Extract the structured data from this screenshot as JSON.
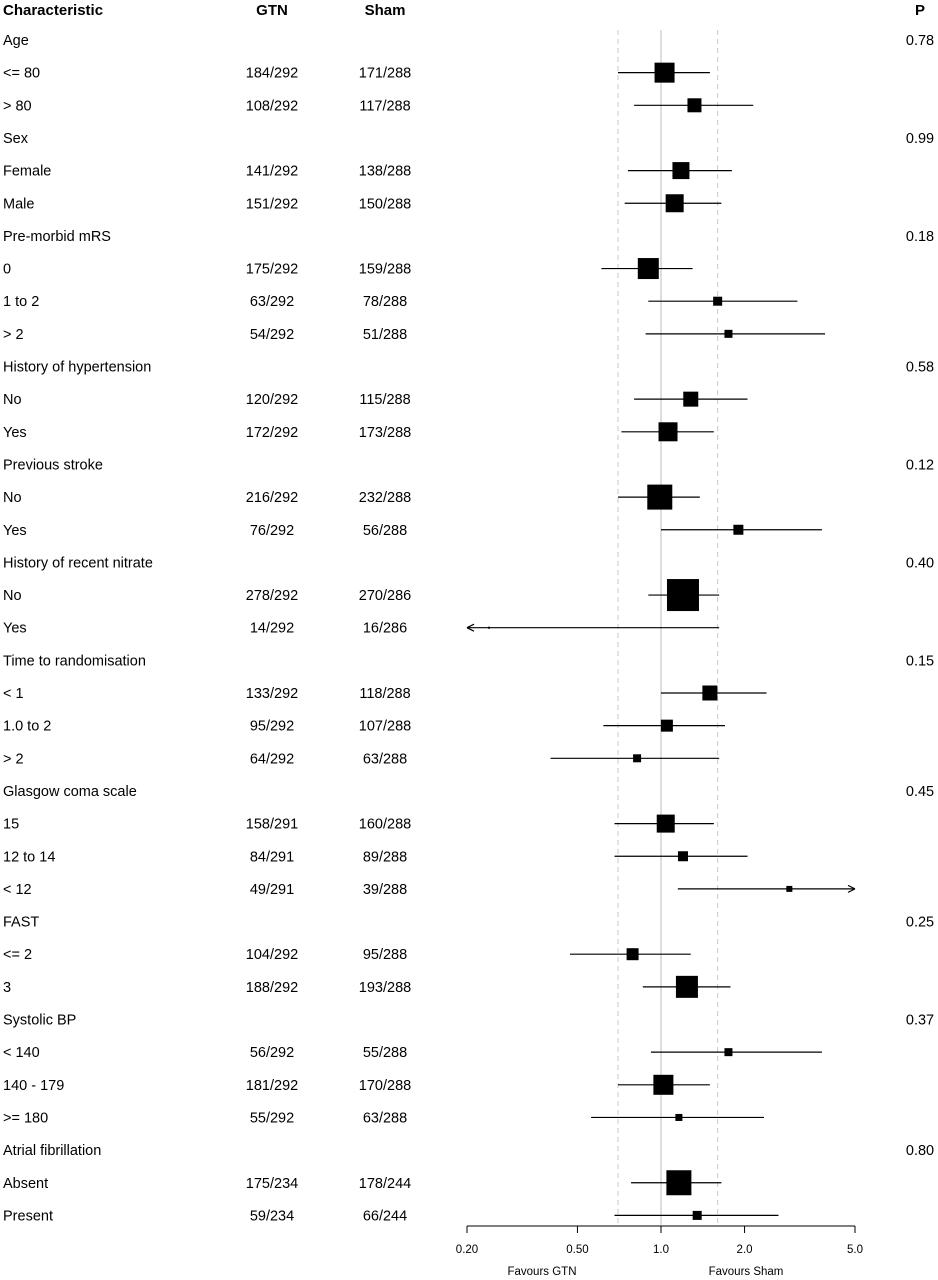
{
  "chart_data": {
    "type": "forest",
    "headers": {
      "characteristic": "Characteristic",
      "gtn": "GTN",
      "sham": "Sham",
      "p": "P"
    },
    "x_axis": {
      "scale": "log",
      "range": [
        0.2,
        5.0
      ],
      "ticks": [
        0.2,
        0.5,
        1.0,
        2.0,
        5.0
      ],
      "tick_labels": [
        "0.20",
        "0.50",
        "1.0",
        "2.0",
        "5.0"
      ],
      "reference_line": 1.0,
      "dashed_lines": [
        0.7,
        1.6
      ],
      "favours_left": "Favours GTN",
      "favours_right": "Favours Sham"
    },
    "rows": [
      {
        "label": "Age",
        "group": true,
        "p": "0.78"
      },
      {
        "label": "<= 80",
        "gtn": "184/292",
        "sham": "171/288",
        "est": 1.03,
        "lo": 0.7,
        "hi": 1.5,
        "box": 20
      },
      {
        "label": "> 80",
        "gtn": "108/292",
        "sham": "117/288",
        "est": 1.32,
        "lo": 0.8,
        "hi": 2.15,
        "box": 14
      },
      {
        "label": "Sex",
        "group": true,
        "p": "0.99"
      },
      {
        "label": "Female",
        "gtn": "141/292",
        "sham": "138/288",
        "est": 1.18,
        "lo": 0.76,
        "hi": 1.8,
        "box": 17
      },
      {
        "label": "Male",
        "gtn": "151/292",
        "sham": "150/288",
        "est": 1.12,
        "lo": 0.74,
        "hi": 1.65,
        "box": 18
      },
      {
        "label": "Pre-morbid mRS",
        "group": true,
        "p": "0.18"
      },
      {
        "label": "0",
        "gtn": "175/292",
        "sham": "159/288",
        "est": 0.9,
        "lo": 0.61,
        "hi": 1.3,
        "box": 21
      },
      {
        "label": "1 to 2",
        "gtn": "63/292",
        "sham": "78/288",
        "est": 1.6,
        "lo": 0.9,
        "hi": 3.1,
        "box": 9
      },
      {
        "label": "> 2",
        "gtn": "54/292",
        "sham": "51/288",
        "est": 1.75,
        "lo": 0.88,
        "hi": 3.9,
        "box": 8
      },
      {
        "label": "History of hypertension",
        "group": true,
        "p": "0.58"
      },
      {
        "label": "No",
        "gtn": "120/292",
        "sham": "115/288",
        "est": 1.28,
        "lo": 0.8,
        "hi": 2.05,
        "box": 15
      },
      {
        "label": "Yes",
        "gtn": "172/292",
        "sham": "173/288",
        "est": 1.06,
        "lo": 0.72,
        "hi": 1.55,
        "box": 19
      },
      {
        "label": "Previous stroke",
        "group": true,
        "p": "0.12"
      },
      {
        "label": "No",
        "gtn": "216/292",
        "sham": "232/288",
        "est": 0.99,
        "lo": 0.7,
        "hi": 1.38,
        "box": 25
      },
      {
        "label": "Yes",
        "gtn": "76/292",
        "sham": "56/288",
        "est": 1.9,
        "lo": 1.0,
        "hi": 3.8,
        "box": 10
      },
      {
        "label": "History of recent nitrate",
        "group": true,
        "p": "0.40"
      },
      {
        "label": "No",
        "gtn": "278/292",
        "sham": "270/286",
        "est": 1.2,
        "lo": 0.9,
        "hi": 1.62,
        "box": 32
      },
      {
        "label": "Yes",
        "gtn": "14/292",
        "sham": "16/286",
        "est": 0.24,
        "lo": 0.2,
        "hi": 1.62,
        "box": 2,
        "arrow_left": true
      },
      {
        "label": "Time to randomisation",
        "group": true,
        "p": "0.15"
      },
      {
        "label": "< 1",
        "gtn": "133/292",
        "sham": "118/288",
        "est": 1.5,
        "lo": 1.0,
        "hi": 2.4,
        "box": 15
      },
      {
        "label": "1.0 to 2",
        "gtn": "95/292",
        "sham": "107/288",
        "est": 1.05,
        "lo": 0.62,
        "hi": 1.7,
        "box": 12
      },
      {
        "label": "> 2",
        "gtn": "64/292",
        "sham": "63/288",
        "est": 0.82,
        "lo": 0.4,
        "hi": 1.62,
        "box": 8
      },
      {
        "label": "Glasgow coma scale",
        "group": true,
        "p": "0.45"
      },
      {
        "label": "15",
        "gtn": "158/291",
        "sham": "160/288",
        "est": 1.04,
        "lo": 0.68,
        "hi": 1.55,
        "box": 18
      },
      {
        "label": "12 to 14",
        "gtn": "84/291",
        "sham": "89/288",
        "est": 1.2,
        "lo": 0.68,
        "hi": 2.05,
        "box": 10
      },
      {
        "label": "< 12",
        "gtn": "49/291",
        "sham": "39/288",
        "est": 2.9,
        "lo": 1.15,
        "hi": 5.0,
        "box": 6,
        "arrow_right": true
      },
      {
        "label": "FAST",
        "group": true,
        "p": "0.25"
      },
      {
        "label": "<= 2",
        "gtn": "104/292",
        "sham": "95/288",
        "est": 0.79,
        "lo": 0.47,
        "hi": 1.28,
        "box": 12
      },
      {
        "label": "3",
        "gtn": "188/292",
        "sham": "193/288",
        "est": 1.24,
        "lo": 0.86,
        "hi": 1.78,
        "box": 22
      },
      {
        "label": "Systolic BP",
        "group": true,
        "p": "0.37"
      },
      {
        "label": "< 140",
        "gtn": "56/292",
        "sham": "55/288",
        "est": 1.75,
        "lo": 0.92,
        "hi": 3.8,
        "box": 8
      },
      {
        "label": "140 - 179",
        "gtn": "181/292",
        "sham": "170/288",
        "est": 1.02,
        "lo": 0.7,
        "hi": 1.5,
        "box": 20
      },
      {
        "label": ">= 180",
        "gtn": "55/292",
        "sham": "63/288",
        "est": 1.16,
        "lo": 0.56,
        "hi": 2.35,
        "box": 7
      },
      {
        "label": "Atrial fibrillation",
        "group": true,
        "p": "0.80"
      },
      {
        "label": "Absent",
        "gtn": "175/234",
        "sham": "178/244",
        "est": 1.16,
        "lo": 0.78,
        "hi": 1.65,
        "box": 25
      },
      {
        "label": "Present",
        "gtn": "59/234",
        "sham": "66/244",
        "est": 1.35,
        "lo": 0.68,
        "hi": 2.65,
        "box": 9
      }
    ]
  }
}
